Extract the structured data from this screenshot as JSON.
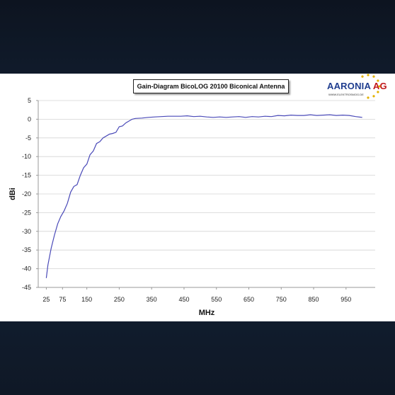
{
  "logo": {
    "brand_main": "AARONIA",
    "brand_suffix": " AG",
    "url": "WWW.ELEKTROSMOG.DE"
  },
  "chart_data": {
    "type": "line",
    "title": "Gain-Diagram BicoLOG 20100 Biconical Antenna",
    "xlabel": "MHz",
    "ylabel": "dBi",
    "xlim": [
      0,
      1040
    ],
    "ylim": [
      -45,
      5
    ],
    "xticks": [
      25,
      75,
      150,
      250,
      350,
      450,
      550,
      650,
      750,
      850,
      950
    ],
    "yticks": [
      5,
      0,
      -5,
      -10,
      -15,
      -20,
      -25,
      -30,
      -35,
      -40,
      -45
    ],
    "grid": true,
    "colors": {
      "line": "#4a4ab8",
      "grid": "#d4d4d4",
      "axis": "#9a9a9a"
    },
    "series": [
      {
        "name": "",
        "x": [
          25,
          30,
          40,
          50,
          60,
          70,
          80,
          90,
          100,
          110,
          120,
          130,
          140,
          150,
          160,
          170,
          180,
          190,
          200,
          210,
          220,
          230,
          240,
          250,
          260,
          270,
          280,
          290,
          300,
          320,
          340,
          360,
          380,
          400,
          420,
          440,
          460,
          480,
          500,
          520,
          540,
          560,
          580,
          600,
          620,
          640,
          660,
          680,
          700,
          720,
          740,
          760,
          780,
          800,
          820,
          840,
          860,
          880,
          900,
          920,
          940,
          960,
          980,
          1000
        ],
        "y": [
          -42.5,
          -39,
          -34.5,
          -31,
          -28,
          -26,
          -24.5,
          -22.5,
          -19.5,
          -18,
          -17.5,
          -15,
          -13,
          -12,
          -9.5,
          -8.5,
          -6.5,
          -6,
          -5,
          -4.5,
          -4,
          -3.8,
          -3.5,
          -2,
          -1.8,
          -1,
          -0.5,
          0,
          0.2,
          0.3,
          0.5,
          0.6,
          0.7,
          0.8,
          0.8,
          0.8,
          0.9,
          0.7,
          0.8,
          0.6,
          0.5,
          0.6,
          0.5,
          0.6,
          0.7,
          0.5,
          0.7,
          0.6,
          0.8,
          0.7,
          1.0,
          0.9,
          1.1,
          1.0,
          1.0,
          1.2,
          1.0,
          1.1,
          1.2,
          1.0,
          1.1,
          1.0,
          0.7,
          0.5
        ]
      }
    ]
  }
}
